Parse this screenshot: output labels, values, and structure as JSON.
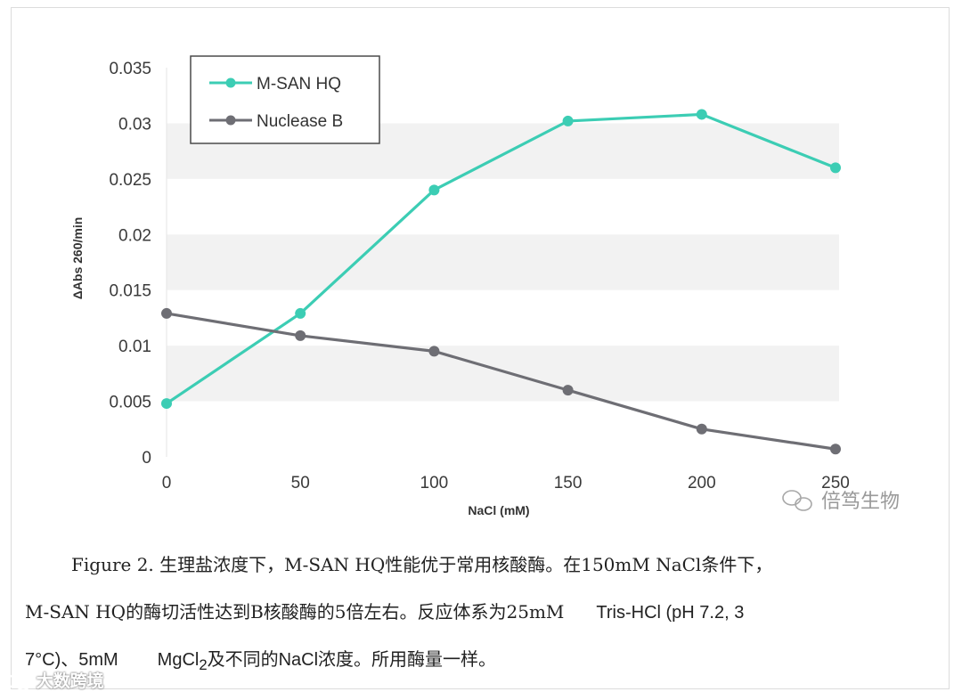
{
  "chart_data": {
    "type": "line",
    "x": [
      0,
      50,
      100,
      150,
      200,
      250
    ],
    "series": [
      {
        "name": "M-SAN HQ",
        "color": "#3ccdb4",
        "values": [
          0.0048,
          0.0129,
          0.024,
          0.0302,
          0.0308,
          0.026
        ]
      },
      {
        "name": "Nuclease B",
        "color": "#6e6e74",
        "values": [
          0.0129,
          0.0109,
          0.0095,
          0.006,
          0.0025,
          0.0007
        ]
      }
    ],
    "xlabel": "NaCl (mM)",
    "ylabel": "ΔAbs 260/min",
    "xlim": [
      0,
      250
    ],
    "ylim": [
      0,
      0.035
    ],
    "x_ticks": [
      "0",
      "50",
      "100",
      "150",
      "200",
      "250"
    ],
    "y_ticks": [
      "0",
      "0.005",
      "0.01",
      "0.015",
      "0.02",
      "0.025",
      "0.03",
      "0.035"
    ],
    "legend_position": "top-left",
    "banded_background": true
  },
  "watermark_chart": "倍笃生物",
  "caption": {
    "line1_prefix": "Figure 2. 生理盐浓度下，M-SAN HQ性能优于常用核酸酶。在150mM NaCl条件下，",
    "line2_prefix": "M-SAN HQ的酶切活性达到B核酸酶的5倍左右。反应体系为25mM",
    "line2_suffix": "Tris-HCl (pH 7.2, 3",
    "line3_a": "7°C)、5mM",
    "line3_b": "MgCl",
    "line3_sub": "2",
    "line3_c": "及不同的NaCl浓度。所用酶量一样。"
  },
  "watermark_bottom": "大数跨境"
}
